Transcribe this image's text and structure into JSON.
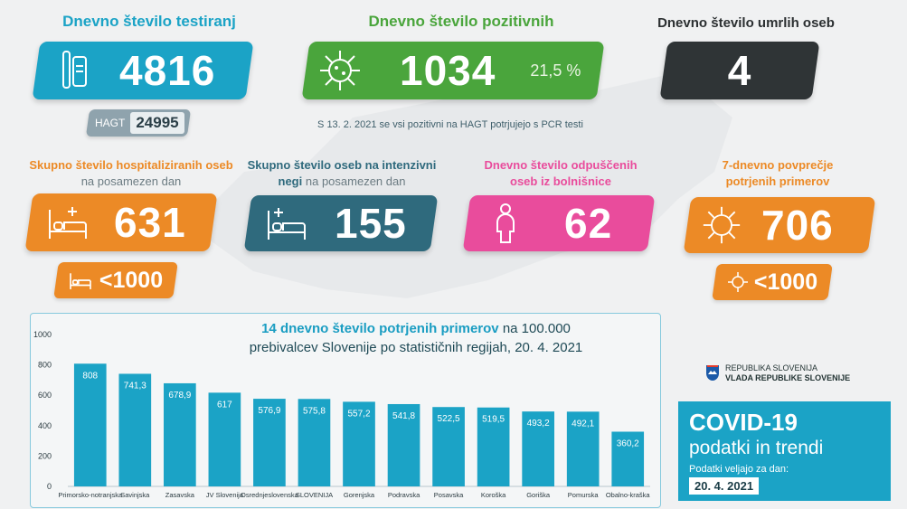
{
  "colors": {
    "blue": "#1ba3c6",
    "green": "#4aa53c",
    "dark": "#2f3436",
    "orange": "#ec8a26",
    "teal": "#2f6a7d",
    "pink": "#e94c9c",
    "bar": "#1ba3c6"
  },
  "testing": {
    "heading": "Dnevno število testiranj",
    "value": "4816",
    "hagt_label": "HAGT",
    "hagt_value": "24995",
    "icon": "test-kit-icon"
  },
  "positive": {
    "heading": "Dnevno število pozitivnih",
    "value": "1034",
    "percent": "21,5 %",
    "icon": "virus-icon",
    "note": "S 13. 2. 2021 se vsi pozitivni na HAGT potrjujejo s PCR testi"
  },
  "deaths": {
    "heading": "Dnevno število umrlih oseb",
    "value": "4"
  },
  "hospitalized": {
    "heading_bold": "Skupno število hospitaliziranih oseb",
    "heading_rest": "na posamezen dan",
    "value": "631",
    "sub_value": "<1000",
    "icon": "hospital-bed-icon"
  },
  "icu": {
    "heading_bold": "Skupno število oseb na intenzivni negi",
    "heading_rest": "na posamezen dan",
    "value": "155",
    "icon": "hospital-bed-icon"
  },
  "discharged": {
    "heading_line1": "Dnevno število odpuščenih",
    "heading_line2": "oseb iz bolnišnice",
    "value": "62",
    "icon": "person-icon"
  },
  "avg7": {
    "heading_line1": "7-dnevno povprečje",
    "heading_line2": "potrjenih primerov",
    "value": "706",
    "sub_value": "<1000",
    "icon": "virus-icon"
  },
  "chart_data": {
    "type": "bar",
    "title_bold": "14 dnevno število potrjenih primerov",
    "title_rest_1": "na 100.000",
    "title_rest_2": "prebivalcev Slovenije po statističnih regijah, 20. 4. 2021",
    "categories": [
      "Primorsko-notranjska",
      "Savinjska",
      "Zasavska",
      "JV Slovenija",
      "Osrednjeslovenska",
      "SLOVENIJA",
      "Gorenjska",
      "Podravska",
      "Posavska",
      "Koroška",
      "Goriška",
      "Pomurska",
      "Obalno-kraška"
    ],
    "values": [
      808,
      741.3,
      678.9,
      617,
      576.9,
      575.8,
      557.2,
      541.8,
      522.5,
      519.5,
      493.2,
      492.1,
      360.2
    ],
    "value_labels": [
      "808",
      "741,3",
      "678,9",
      "617",
      "576,9",
      "575,8",
      "557,2",
      "541,8",
      "522,5",
      "519,5",
      "493,2",
      "492,1",
      "360,2"
    ],
    "yticks": [
      "0",
      "200",
      "400",
      "600",
      "800",
      "1000"
    ],
    "ylim": [
      0,
      1000
    ],
    "xlabel": "",
    "ylabel": "",
    "grid": false
  },
  "gov": {
    "line1": "REPUBLIKA SLOVENIJA",
    "line2": "VLADA REPUBLIKE SLOVENIJE"
  },
  "covid": {
    "title": "COVID-19",
    "subtitle": "podatki in trendi",
    "valid_label": "Podatki veljajo za dan:",
    "date": "20. 4. 2021"
  }
}
